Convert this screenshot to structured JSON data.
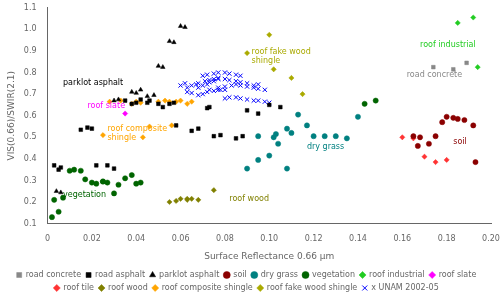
{
  "chart_data": {
    "type": "scatter",
    "xlabel": "Surface Reflectance 0.66 μm",
    "ylabel": "VIS(0.66)/SWIR(2.1)",
    "xlim": [
      0,
      0.2
    ],
    "ylim": [
      0.1,
      1.1
    ],
    "xticks": [
      0,
      0.02,
      0.04,
      0.06,
      0.08,
      {
        "value": 0.1,
        "label": "0.10"
      },
      0.12,
      0.14,
      0.16,
      0.18,
      {
        "value": 0.2,
        "label": "0.20"
      }
    ],
    "yticks": [
      0.1,
      0.2,
      0.3,
      0.4,
      0.5,
      0.6,
      0.7,
      0.8,
      0.9,
      {
        "value": 1.0,
        "label": "1.0"
      },
      1.1
    ],
    "grid": false,
    "legend": "bottom",
    "series": [
      {
        "name": "road concrete",
        "color": "#888888",
        "marker": "square",
        "values": [
          [
            0.174,
            0.825
          ],
          [
            0.189,
            0.845
          ],
          [
            0.183,
            0.815
          ]
        ]
      },
      {
        "name": "road asphalt",
        "color": "#000000",
        "marker": "square",
        "values": [
          [
            0.003,
            0.37
          ],
          [
            0.005,
            0.35
          ],
          [
            0.006,
            0.36
          ],
          [
            0.015,
            0.535
          ],
          [
            0.018,
            0.545
          ],
          [
            0.02,
            0.54
          ],
          [
            0.022,
            0.37
          ],
          [
            0.027,
            0.37
          ],
          [
            0.03,
            0.355
          ],
          [
            0.035,
            0.67
          ],
          [
            0.038,
            0.655
          ],
          [
            0.04,
            0.66
          ],
          [
            0.042,
            0.675
          ],
          [
            0.045,
            0.66
          ],
          [
            0.046,
            0.67
          ],
          [
            0.05,
            0.655
          ],
          [
            0.052,
            0.64
          ],
          [
            0.055,
            0.655
          ],
          [
            0.057,
            0.66
          ],
          [
            0.065,
            0.53
          ],
          [
            0.068,
            0.54
          ],
          [
            0.075,
            0.505
          ],
          [
            0.078,
            0.51
          ],
          [
            0.085,
            0.495
          ],
          [
            0.088,
            0.505
          ],
          [
            0.09,
            0.625
          ],
          [
            0.095,
            0.61
          ],
          [
            0.1,
            0.65
          ],
          [
            0.105,
            0.64
          ],
          [
            0.072,
            0.635
          ],
          [
            0.073,
            0.64
          ],
          [
            0.058,
            0.555
          ]
        ]
      },
      {
        "name": "parklot asphalt",
        "color": "#000000",
        "marker": "triangle",
        "values": [
          [
            0.004,
            0.25
          ],
          [
            0.006,
            0.244
          ],
          [
            0.03,
            0.67
          ],
          [
            0.032,
            0.675
          ],
          [
            0.038,
            0.71
          ],
          [
            0.04,
            0.705
          ],
          [
            0.042,
            0.72
          ],
          [
            0.045,
            0.69
          ],
          [
            0.048,
            0.695
          ],
          [
            0.05,
            0.83
          ],
          [
            0.052,
            0.825
          ],
          [
            0.055,
            0.945
          ],
          [
            0.057,
            0.94
          ],
          [
            0.06,
            1.015
          ],
          [
            0.062,
            1.01
          ]
        ]
      },
      {
        "name": "soil",
        "color": "#8B0000",
        "marker": "circle",
        "values": [
          [
            0.165,
            0.505
          ],
          [
            0.167,
            0.46
          ],
          [
            0.168,
            0.5
          ],
          [
            0.172,
            0.47
          ],
          [
            0.175,
            0.505
          ],
          [
            0.178,
            0.57
          ],
          [
            0.18,
            0.595
          ],
          [
            0.183,
            0.59
          ],
          [
            0.185,
            0.585
          ],
          [
            0.188,
            0.58
          ],
          [
            0.193,
            0.385
          ],
          [
            0.192,
            0.555
          ]
        ]
      },
      {
        "name": "dry grass",
        "color": "#008080",
        "marker": "circle",
        "values": [
          [
            0.09,
            0.355
          ],
          [
            0.095,
            0.395
          ],
          [
            0.1,
            0.415
          ],
          [
            0.103,
            0.515
          ],
          [
            0.108,
            0.54
          ],
          [
            0.11,
            0.52
          ],
          [
            0.113,
            0.605
          ],
          [
            0.117,
            0.555
          ],
          [
            0.12,
            0.505
          ],
          [
            0.125,
            0.505
          ],
          [
            0.13,
            0.505
          ],
          [
            0.135,
            0.495
          ],
          [
            0.14,
            0.595
          ],
          [
            0.102,
            0.5
          ],
          [
            0.108,
            0.355
          ],
          [
            0.095,
            0.505
          ],
          [
            0.104,
            0.47
          ]
        ]
      },
      {
        "name": "vegetation",
        "color": "#006400",
        "marker": "circle",
        "values": [
          [
            0.002,
            0.13
          ],
          [
            0.003,
            0.21
          ],
          [
            0.005,
            0.155
          ],
          [
            0.007,
            0.22
          ],
          [
            0.01,
            0.345
          ],
          [
            0.012,
            0.35
          ],
          [
            0.015,
            0.345
          ],
          [
            0.017,
            0.305
          ],
          [
            0.02,
            0.29
          ],
          [
            0.022,
            0.285
          ],
          [
            0.025,
            0.295
          ],
          [
            0.027,
            0.29
          ],
          [
            0.03,
            0.24
          ],
          [
            0.032,
            0.28
          ],
          [
            0.035,
            0.31
          ],
          [
            0.038,
            0.325
          ],
          [
            0.04,
            0.285
          ],
          [
            0.042,
            0.29
          ],
          [
            0.143,
            0.655
          ],
          [
            0.148,
            0.67
          ],
          [
            0.025,
            0.295
          ]
        ]
      },
      {
        "name": "roof industrial",
        "color": "#22CC22",
        "marker": "diamond",
        "values": [
          [
            0.185,
            1.03
          ],
          [
            0.192,
            1.055
          ],
          [
            0.194,
            0.825
          ]
        ]
      },
      {
        "name": "roof slate",
        "color": "#FF00FF",
        "marker": "diamond",
        "values": [
          [
            0.035,
            0.61
          ]
        ]
      },
      {
        "name": "roof tile",
        "color": "#FF3333",
        "marker": "diamond",
        "values": [
          [
            0.16,
            0.5
          ],
          [
            0.165,
            0.495
          ],
          [
            0.17,
            0.41
          ],
          [
            0.175,
            0.385
          ],
          [
            0.18,
            0.395
          ]
        ]
      },
      {
        "name": "roof wood",
        "color": "#808000",
        "marker": "diamond",
        "values": [
          [
            0.055,
            0.2
          ],
          [
            0.058,
            0.205
          ],
          [
            0.06,
            0.215
          ],
          [
            0.063,
            0.21
          ],
          [
            0.065,
            0.215
          ],
          [
            0.068,
            0.21
          ],
          [
            0.075,
            0.255
          ],
          [
            0.063,
            0.215
          ]
        ]
      },
      {
        "name": "roof composite shingle",
        "color": "#FFA500",
        "marker": "diamond",
        "values": [
          [
            0.025,
            0.51
          ],
          [
            0.028,
            0.665
          ],
          [
            0.033,
            0.67
          ],
          [
            0.038,
            0.655
          ],
          [
            0.04,
            0.665
          ],
          [
            0.042,
            0.66
          ],
          [
            0.043,
            0.5
          ],
          [
            0.046,
            0.55
          ],
          [
            0.05,
            0.665
          ],
          [
            0.053,
            0.67
          ],
          [
            0.055,
            0.665
          ],
          [
            0.058,
            0.665
          ],
          [
            0.06,
            0.67
          ],
          [
            0.063,
            0.655
          ],
          [
            0.065,
            0.665
          ],
          [
            0.056,
            0.555
          ]
        ]
      },
      {
        "name": "roof fake wood shingle",
        "color": "#AAAA00",
        "marker": "diamond",
        "values": [
          [
            0.09,
            0.89
          ],
          [
            0.1,
            0.975
          ],
          [
            0.11,
            0.775
          ],
          [
            0.115,
            0.7
          ],
          [
            0.102,
            0.815
          ]
        ]
      },
      {
        "name": "x UNAM 2002-05",
        "color": "#0000FF",
        "marker": "x",
        "values": [
          [
            0.063,
            0.71
          ],
          [
            0.065,
            0.705
          ],
          [
            0.068,
            0.695
          ],
          [
            0.07,
            0.7
          ],
          [
            0.072,
            0.71
          ],
          [
            0.073,
            0.72
          ],
          [
            0.075,
            0.715
          ],
          [
            0.077,
            0.72
          ],
          [
            0.078,
            0.72
          ],
          [
            0.08,
            0.72
          ],
          [
            0.068,
            0.73
          ],
          [
            0.07,
            0.74
          ],
          [
            0.072,
            0.745
          ],
          [
            0.073,
            0.755
          ],
          [
            0.075,
            0.76
          ],
          [
            0.077,
            0.77
          ],
          [
            0.07,
            0.785
          ],
          [
            0.072,
            0.79
          ],
          [
            0.075,
            0.795
          ],
          [
            0.077,
            0.8
          ],
          [
            0.08,
            0.8
          ],
          [
            0.082,
            0.795
          ],
          [
            0.085,
            0.79
          ],
          [
            0.087,
            0.785
          ],
          [
            0.068,
            0.75
          ],
          [
            0.071,
            0.76
          ],
          [
            0.073,
            0.765
          ],
          [
            0.075,
            0.77
          ],
          [
            0.077,
            0.775
          ],
          [
            0.08,
            0.77
          ],
          [
            0.082,
            0.765
          ],
          [
            0.085,
            0.76
          ],
          [
            0.087,
            0.755
          ],
          [
            0.09,
            0.75
          ],
          [
            0.093,
            0.74
          ],
          [
            0.095,
            0.745
          ],
          [
            0.077,
            0.73
          ],
          [
            0.08,
            0.735
          ],
          [
            0.083,
            0.74
          ],
          [
            0.085,
            0.745
          ],
          [
            0.087,
            0.74
          ],
          [
            0.09,
            0.735
          ],
          [
            0.093,
            0.73
          ],
          [
            0.095,
            0.725
          ],
          [
            0.098,
            0.72
          ],
          [
            0.08,
            0.68
          ],
          [
            0.082,
            0.685
          ],
          [
            0.085,
            0.685
          ],
          [
            0.087,
            0.68
          ],
          [
            0.09,
            0.675
          ],
          [
            0.093,
            0.67
          ],
          [
            0.095,
            0.67
          ],
          [
            0.098,
            0.665
          ],
          [
            0.1,
            0.66
          ],
          [
            0.063,
            0.73
          ],
          [
            0.065,
            0.74
          ],
          [
            0.067,
            0.745
          ],
          [
            0.06,
            0.74
          ],
          [
            0.062,
            0.75
          ]
        ]
      }
    ],
    "annotations": [
      {
        "text": "parklot asphalt",
        "x": 0.007,
        "y": 0.735,
        "color": "#000000"
      },
      {
        "text": "roof slate",
        "x": 0.018,
        "y": 0.627,
        "color": "#FF00FF"
      },
      {
        "text": "roof composite",
        "x": 0.027,
        "y": 0.52,
        "color": "#FFA500"
      },
      {
        "text": "shingle",
        "x": 0.027,
        "y": 0.495,
        "color": "#FFA500"
      },
      {
        "text": "vegetation",
        "x": 0.007,
        "y": 0.215,
        "color": "#006400"
      },
      {
        "text": "roof wood",
        "x": 0.082,
        "y": 0.196,
        "color": "#808000"
      },
      {
        "text": "dry grass",
        "x": 0.117,
        "y": 0.435,
        "color": "#008080"
      },
      {
        "text": "roof fake wood",
        "x": 0.092,
        "y": 0.875,
        "color": "#AAAA00"
      },
      {
        "text": "shingle",
        "x": 0.092,
        "y": 0.848,
        "color": "#AAAA00"
      },
      {
        "text": "roof industrial",
        "x": 0.168,
        "y": 0.91,
        "color": "#22CC22"
      },
      {
        "text": "road concrete",
        "x": 0.162,
        "y": 0.77,
        "color": "#888888"
      },
      {
        "text": "soil",
        "x": 0.183,
        "y": 0.46,
        "color": "#8B0000"
      }
    ]
  }
}
